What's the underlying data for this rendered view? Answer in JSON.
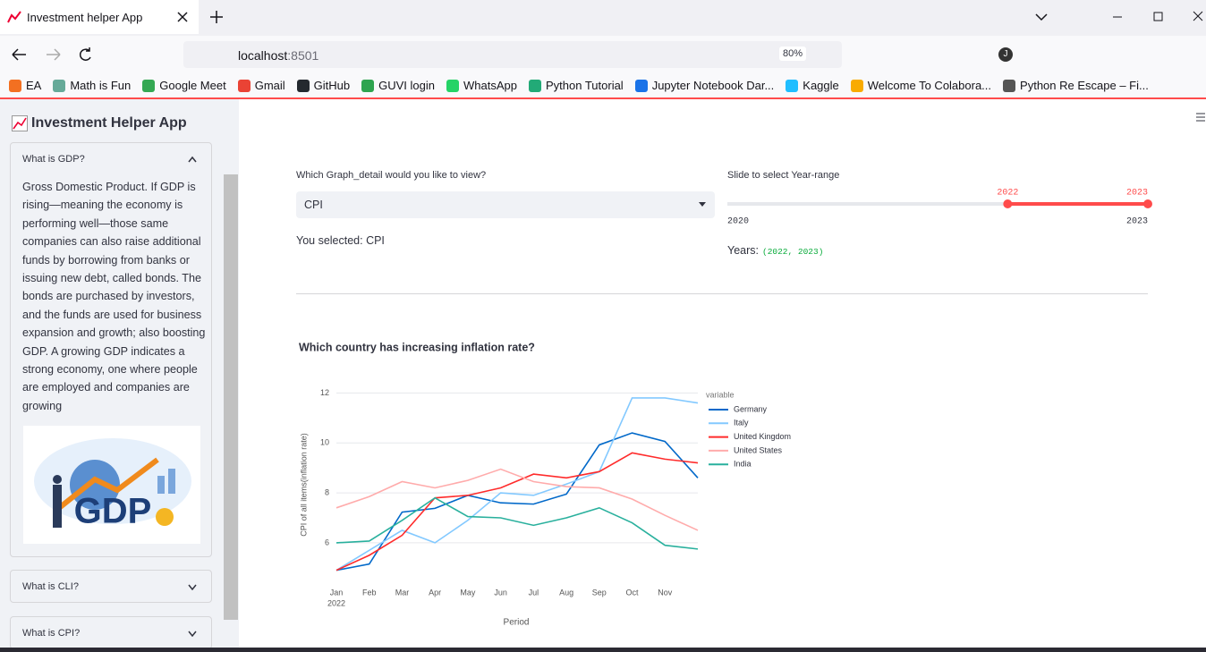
{
  "browser": {
    "tab_title": "Investment helper App",
    "url_host": "localhost",
    "url_port": ":8501",
    "zoom": "80%",
    "profile_initial": "J",
    "bookmarks": [
      "EA",
      "Math is Fun",
      "Google Meet",
      "Gmail",
      "GitHub",
      "GUVI login",
      "WhatsApp",
      "Python Tutorial",
      "Jupyter Notebook Dar...",
      "Kaggle",
      "Welcome To Colabora...",
      "Python Re Escape – Fi..."
    ]
  },
  "sidebar": {
    "title": "Investment Helper App",
    "expanders": [
      {
        "title": "What is GDP?",
        "body": "Gross Domestic Product. If GDP is rising—meaning the economy is performing well—those same companies can also raise additional funds by borrowing from banks or issuing new debt, called bonds. The bonds are purchased by investors, and the funds are used for business expansion and growth; also boosting GDP. A growing GDP indicates a strong economy, one where people are employed and companies are growing",
        "image_text": "GDP"
      },
      {
        "title": "What is CLI?"
      },
      {
        "title": "What is CPI?"
      }
    ]
  },
  "main": {
    "select": {
      "label": "Which Graph_detail would you like to view?",
      "value": "CPI"
    },
    "selected_text": "You selected: CPI",
    "slider": {
      "label": "Slide to select Year-range",
      "min": 2020,
      "max": 2023,
      "values": [
        2022,
        2023
      ]
    },
    "years_label": "Years:",
    "years_value": "(2022, 2023)"
  },
  "chart_data": {
    "type": "line",
    "title": "Which country has increasing inflation rate?",
    "x_label": "Period",
    "y_label": "CPI of all items(inflation rate)",
    "legend_title": "variable",
    "x": [
      "2022-01",
      "2022-02",
      "2022-03",
      "2022-04",
      "2022-05",
      "2022-06",
      "2022-07",
      "2022-08",
      "2022-09",
      "2022-10",
      "2022-11",
      "2022-12"
    ],
    "xlim": [
      "2022-01",
      "2022-12"
    ],
    "xticks": [
      {
        "value": "2022-01",
        "label": "Jan"
      },
      {
        "value": "2022-02",
        "label": "Feb"
      },
      {
        "value": "2022-03",
        "label": "Mar"
      },
      {
        "value": "2022-04",
        "label": "Apr"
      },
      {
        "value": "2022-05",
        "label": "May"
      },
      {
        "value": "2022-06",
        "label": "Jun"
      },
      {
        "value": "2022-07",
        "label": "Jul"
      },
      {
        "value": "2022-08",
        "label": "Aug"
      },
      {
        "value": "2022-09",
        "label": "Sep"
      },
      {
        "value": "2022-10",
        "label": "Oct"
      },
      {
        "value": "2022-11",
        "label": "Nov"
      }
    ],
    "x_year_label": "2022",
    "ylim": [
      4.6,
      12.3
    ],
    "yticks": [
      6,
      8,
      10,
      12
    ],
    "grid": true,
    "series": [
      {
        "name": "Germany",
        "color": "#0068c9",
        "values": [
          4.9,
          5.15,
          7.23,
          7.38,
          7.9,
          7.6,
          7.55,
          7.95,
          9.92,
          10.4,
          10.06,
          8.6
        ]
      },
      {
        "name": "Italy",
        "color": "#83c9ff",
        "values": [
          4.9,
          5.7,
          6.5,
          6.0,
          6.9,
          8.0,
          7.9,
          8.35,
          8.85,
          11.8,
          11.8,
          11.6
        ]
      },
      {
        "name": "United Kingdom",
        "color": "#ff2b2b",
        "values": [
          4.9,
          5.5,
          6.3,
          7.8,
          7.9,
          8.2,
          8.75,
          8.6,
          8.85,
          9.6,
          9.35,
          9.2
        ]
      },
      {
        "name": "United States",
        "color": "#ffabab",
        "values": [
          7.4,
          7.85,
          8.45,
          8.2,
          8.5,
          8.95,
          8.45,
          8.25,
          8.2,
          7.75,
          7.1,
          6.5
        ]
      },
      {
        "name": "India",
        "color": "#29b09d",
        "values": [
          6.0,
          6.07,
          6.9,
          7.8,
          7.05,
          7.0,
          6.7,
          7.0,
          7.4,
          6.8,
          5.9,
          5.75
        ]
      }
    ]
  }
}
